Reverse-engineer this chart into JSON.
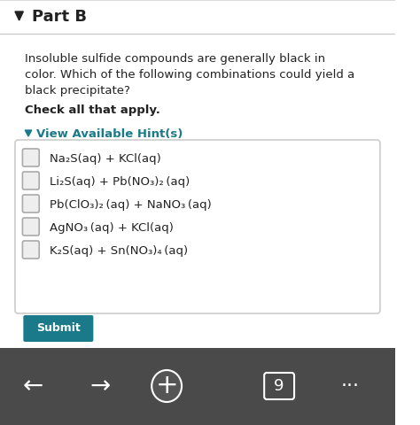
{
  "title": "Part B",
  "question": "Insoluble sulfide compounds are generally black in\ncolor. Which of the following combinations could yield a\nblack precipitate?",
  "bold_text": "Check all that apply.",
  "hint_text": "View Available Hint(s)",
  "options": [
    "Na₂S(aq) + KCl(aq)",
    "Li₂S(aq) + Pb(NO₃)₂ (aq)",
    "Pb(ClO₃)₂ (aq) + NaNO₃ (aq)",
    "AgNO₃ (aq) + KCl(aq)",
    "K₂S(aq) + Sn(NO₃)₄ (aq)"
  ],
  "bg_color": "#f5f5f5",
  "white": "#ffffff",
  "teal": "#1a7a8a",
  "dark_gray": "#222222",
  "light_gray": "#cccccc",
  "nav_bar_color": "#4a4a4a",
  "submit_color": "#1a7a8a",
  "box_border": "#cccccc"
}
